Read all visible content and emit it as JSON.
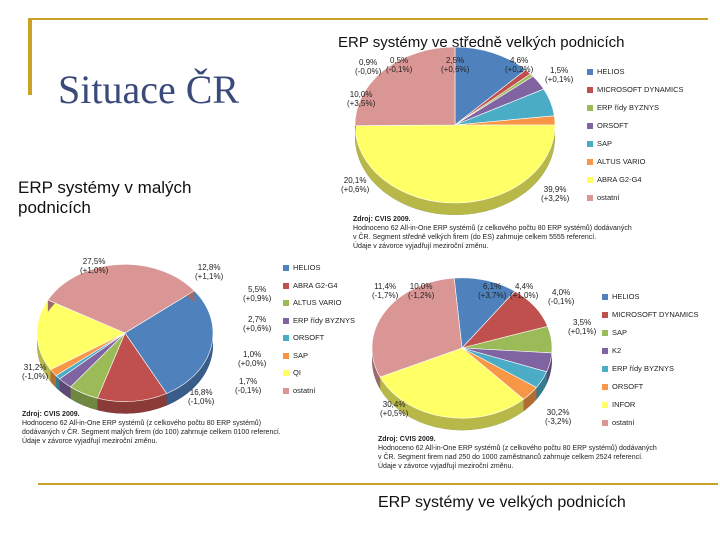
{
  "slide": {
    "title": "Situace ČR",
    "small_heading": "ERP systémy v malých podnicích",
    "top_heading": "ERP systémy ve středně velkých podnicích",
    "bottom_heading": "ERP systémy ve velkých podnicích",
    "accent_color": "#c9a227",
    "title_color": "#3a4a7a"
  },
  "chart_data": [
    {
      "id": "small",
      "type": "pie",
      "categories": [
        "HELIOS",
        "ABRA G2-G4",
        "ALTUS VARIO",
        "ERP řídy BYZNYS",
        "ORSOFT",
        "SAP",
        "QI",
        "ostatní"
      ],
      "values": [
        27.5,
        12.8,
        5.5,
        2.7,
        1.0,
        1.7,
        16.8,
        31.2
      ],
      "slice_labels": [
        "27,5%\n(+1,0%)",
        "12,8%\n(+1,1%)",
        "5,5%\n(+0,9%)",
        "2,7%\n(+0,6%)",
        "1,0%\n(+0,0%)",
        "1,7%\n(-0,1%)",
        "16,8%\n(-1,0%)",
        "31,2%\n(-1,0%)"
      ],
      "colors": [
        "#4f81bd",
        "#c0504d",
        "#9bbb59",
        "#8064a2",
        "#4bacc6",
        "#f79646",
        "#ffff66",
        "#d99694"
      ],
      "source_title": "Zdroj: CVIS 2009.",
      "source_lines": [
        "Hodnoceno 62 All-in-One ERP systémů (z celkového počtu 80 ERP systémů)",
        "dodávaných v ČR. Segment malých firem (do 100) zahrnuje celkem 0100 referencí.",
        "Údaje v závorce vyjadřují meziroční změnu."
      ]
    },
    {
      "id": "medium",
      "type": "pie",
      "categories": [
        "HELIOS",
        "MICROSOFT DYNAMICS",
        "ERP řídy BYZNYS",
        "ORSOFT",
        "SAP",
        "ALTUS VARIO",
        "ABRA G2-G4",
        "ostatní"
      ],
      "values": [
        10.0,
        0.9,
        0.5,
        2.5,
        4.6,
        1.5,
        39.9,
        20.1
      ],
      "slice_labels": [
        "10,0%\n(+3,5%)",
        "0,9%\n(-0,0%)",
        "0,5%\n(-0,1%)",
        "2,5%\n(+0,6%)",
        "4,6%\n(+0,2%)",
        "1,5%\n(+0,1%)",
        "39,9%\n(+3,2%)",
        "20,1%\n(+0,6%)"
      ],
      "colors": [
        "#4f81bd",
        "#c0504d",
        "#9bbb59",
        "#8064a2",
        "#4bacc6",
        "#f79646",
        "#ffff66",
        "#d99694"
      ],
      "source_title": "Zdroj: CVIS 2009.",
      "source_lines": [
        "Hodnoceno 62 All-in-One ERP systémů (z celkového počtu 80 ERP systémů) dodávaných",
        "v ČR. Segment středně velkých firem (do ES) zahrnuje celkem 5555 referencí.",
        "Údaje v závorce vyjadřují meziroční změnu."
      ]
    },
    {
      "id": "large",
      "type": "pie",
      "categories": [
        "HELIOS",
        "MICROSOFT DYNAMICS",
        "SAP",
        "K2",
        "ERP řídy BYZNYS",
        "ORSOFT",
        "INFOR",
        "ostatní"
      ],
      "values": [
        11.4,
        10.0,
        6.1,
        4.4,
        4.0,
        3.5,
        30.2,
        30.4
      ],
      "slice_labels": [
        "11,4%\n(-1,7%)",
        "10,0%\n(-1,2%)",
        "6,1%\n(+3,7%)",
        "4,4%\n(+1,0%)",
        "4,0%\n(-0,1%)",
        "3,5%\n(+0,1%)",
        "30,2%\n(-3,2%)",
        "30,4%\n(+0,5%)"
      ],
      "colors": [
        "#4f81bd",
        "#c0504d",
        "#9bbb59",
        "#8064a2",
        "#4bacc6",
        "#f79646",
        "#ffff66",
        "#d99694"
      ],
      "source_title": "Zdroj: CVIS 2009.",
      "source_lines": [
        "Hodnoceno 62 All-in-One ERP systémů (z celkového počtu 80 ERP systémů) dodávaných",
        "v ČR. Segment firem nad 250 do 1000 zaměstnanců zahrnuje celkem 2524 referencí.",
        "Údaje v závorce vyjadřují meziroční změnu."
      ]
    }
  ]
}
